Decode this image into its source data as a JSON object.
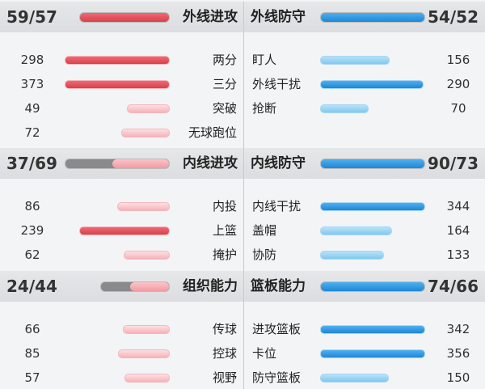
{
  "sections": [
    {
      "left": {
        "rating": "59/57",
        "title": "外线进攻",
        "stats": [
          {
            "label": "两分",
            "value": 298
          },
          {
            "label": "三分",
            "value": 373
          },
          {
            "label": "突破",
            "value": 49
          },
          {
            "label": "无球跑位",
            "value": 72
          }
        ]
      },
      "right": {
        "rating": "54/52",
        "title": "外线防守",
        "stats": [
          {
            "label": "盯人",
            "value": 156
          },
          {
            "label": "外线干扰",
            "value": 290
          },
          {
            "label": "抢断",
            "value": 70
          }
        ]
      }
    },
    {
      "left": {
        "rating": "37/69",
        "title": "内线进攻",
        "stats": [
          {
            "label": "内投",
            "value": 86
          },
          {
            "label": "上篮",
            "value": 239
          },
          {
            "label": "掩护",
            "value": 62
          }
        ]
      },
      "right": {
        "rating": "90/73",
        "title": "内线防守",
        "stats": [
          {
            "label": "内线干扰",
            "value": 344
          },
          {
            "label": "盖帽",
            "value": 164
          },
          {
            "label": "协防",
            "value": 133
          }
        ]
      }
    },
    {
      "left": {
        "rating": "24/44",
        "title": "组织能力",
        "stats": [
          {
            "label": "传球",
            "value": 66
          },
          {
            "label": "控球",
            "value": 85
          },
          {
            "label": "视野",
            "value": 57
          }
        ]
      },
      "right": {
        "rating": "74/66",
        "title": "篮板能力",
        "stats": [
          {
            "label": "进攻篮板",
            "value": 342
          },
          {
            "label": "卡位",
            "value": 356
          },
          {
            "label": "防守篮板",
            "value": 150
          }
        ]
      }
    }
  ]
}
